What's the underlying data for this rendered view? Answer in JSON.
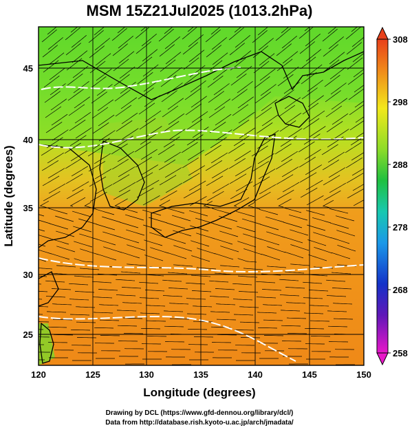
{
  "title": "MSM 15Z21Jul2025 (1013.2hPa)",
  "x_axis_label": "Longitude (degrees)",
  "y_axis_label": "Latitude  (degrees)",
  "x_ticks": [
    "120",
    "125",
    "130",
    "135",
    "140",
    "145",
    "150"
  ],
  "y_ticks": [
    "25",
    "30",
    "35",
    "40",
    "45"
  ],
  "colorbar_ticks": [
    "308",
    "298",
    "288",
    "278",
    "268",
    "258"
  ],
  "credit_line1": "Drawing by DCL (https://www.gfd-dennou.org/library/dcl/)",
  "credit_line2": "Data from http://database.rish.kyoto-u.ac.jp/arch/jmadata/",
  "map_extent": {
    "lon": [
      120,
      150
    ],
    "lat": [
      23,
      48
    ]
  },
  "colorbar_range": [
    258,
    308
  ],
  "field": "potential temperature shading (K) with wind streamlines",
  "colors": {
    "warm": "#f08a1a",
    "mid": "#e8c020",
    "cool": "#6ed830",
    "cold": "#18b030"
  }
}
